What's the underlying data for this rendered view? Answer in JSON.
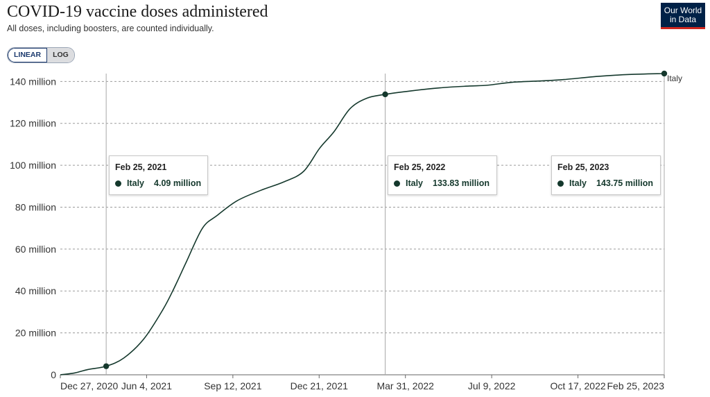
{
  "header": {
    "title": "COVID-19 vaccine doses administered",
    "subtitle": "All doses, including boosters, are counted individually.",
    "logo_line1": "Our World",
    "logo_line2": "in Data"
  },
  "scale_toggle": {
    "linear_label": "LINEAR",
    "log_label": "LOG",
    "selected": "LINEAR"
  },
  "colors": {
    "line": "#14382c",
    "grid": "#9a9a9a",
    "hover_line": "#a8a8a8"
  },
  "tooltips": [
    {
      "date": "Feb 25, 2021",
      "entity": "Italy",
      "value": "4.09 million"
    },
    {
      "date": "Feb 25, 2022",
      "entity": "Italy",
      "value": "133.83 million"
    },
    {
      "date": "Feb 25, 2023",
      "entity": "Italy",
      "value": "143.75 million"
    }
  ],
  "chart_data": {
    "type": "line",
    "title": "COVID-19 vaccine doses administered",
    "subtitle": "All doses, including boosters, are counted individually.",
    "x_tick_labels": [
      "Dec 27, 2020",
      "Jun 4, 2021",
      "Sep 12, 2021",
      "Dec 21, 2021",
      "Mar 31, 2022",
      "Jul 9, 2022",
      "Oct 17, 2022",
      "Feb 25, 2023"
    ],
    "y_tick_labels": [
      "0",
      "20 million",
      "40 million",
      "60 million",
      "80 million",
      "100 million",
      "120 million",
      "140 million"
    ],
    "y_tick_values": [
      0,
      20,
      40,
      60,
      80,
      100,
      120,
      140
    ],
    "ylim": [
      0,
      143.75
    ],
    "y_unit": "million",
    "grid": "horizontal dashed",
    "series": [
      {
        "name": "Italy",
        "points": [
          [
            "2020-12-27",
            0
          ],
          [
            "2021-01-15",
            0.9
          ],
          [
            "2021-02-01",
            2.5
          ],
          [
            "2021-02-25",
            4.09
          ],
          [
            "2021-03-20",
            8
          ],
          [
            "2021-04-15",
            17
          ],
          [
            "2021-05-10",
            31
          ],
          [
            "2021-05-25",
            41.5
          ],
          [
            "2021-06-10",
            54
          ],
          [
            "2021-07-01",
            70
          ],
          [
            "2021-07-20",
            76
          ],
          [
            "2021-08-15",
            83
          ],
          [
            "2021-09-15",
            88
          ],
          [
            "2021-10-15",
            92
          ],
          [
            "2021-11-10",
            97
          ],
          [
            "2021-12-01",
            108
          ],
          [
            "2021-12-20",
            116
          ],
          [
            "2022-01-10",
            127
          ],
          [
            "2022-02-01",
            132
          ],
          [
            "2022-02-25",
            133.83
          ],
          [
            "2022-03-31",
            135.5
          ],
          [
            "2022-05-10",
            137
          ],
          [
            "2022-06-15",
            137.8
          ],
          [
            "2022-07-09",
            138.2
          ],
          [
            "2022-08-10",
            139.6
          ],
          [
            "2022-09-15",
            140.2
          ],
          [
            "2022-10-17",
            140.9
          ],
          [
            "2022-11-30",
            142.4
          ],
          [
            "2023-01-10",
            143.3
          ],
          [
            "2023-02-25",
            143.75
          ]
        ]
      }
    ],
    "end_label": "Italy",
    "highlighted_dates": [
      "2021-02-25",
      "2022-02-25",
      "2023-02-25"
    ]
  }
}
